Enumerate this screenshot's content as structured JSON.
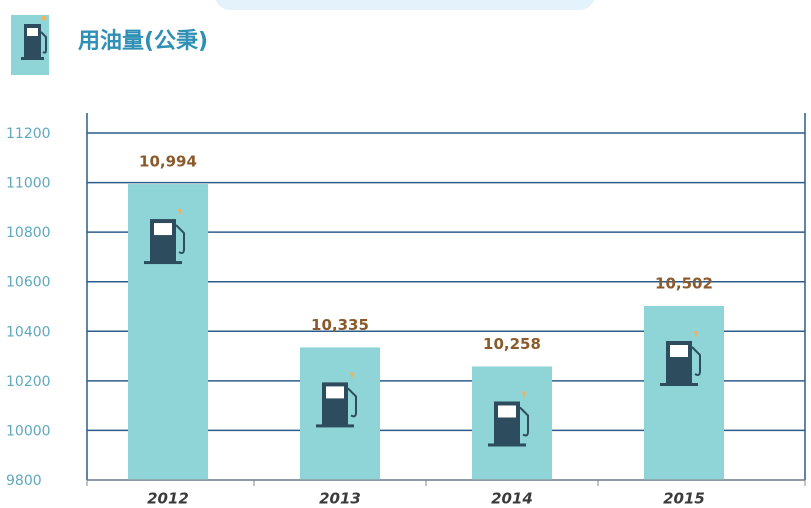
{
  "chart_data": {
    "type": "bar",
    "title": "用油量(公秉)",
    "categories": [
      "2012",
      "2013",
      "2014",
      "2015"
    ],
    "values": [
      10994,
      10335,
      10258,
      10502
    ],
    "value_labels": [
      "10,994",
      "10,335",
      "10,258",
      "10,502"
    ],
    "color": "#8fd4d7",
    "ylim": [
      9800,
      11200
    ],
    "yticks": [
      9800,
      10000,
      10200,
      10400,
      10600,
      10800,
      11000,
      11200
    ],
    "grid": true
  }
}
